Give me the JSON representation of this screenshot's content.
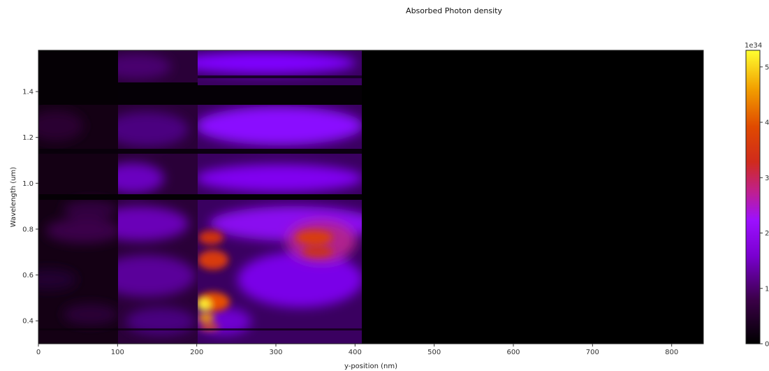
{
  "chart_data": {
    "type": "heatmap",
    "title": "Absorbed Photon density",
    "xlabel": "y-position (nm)",
    "ylabel": "Wavelength (um)",
    "xlim": [
      0,
      840
    ],
    "ylim": [
      0.3,
      1.58
    ],
    "x_ticks": [
      0,
      100,
      200,
      300,
      400,
      500,
      600,
      700,
      800
    ],
    "y_ticks": [
      0.4,
      0.6,
      0.8,
      1.0,
      1.2,
      1.4
    ],
    "x_tick_labels": [
      "0",
      "100",
      "200",
      "300",
      "400",
      "500",
      "600",
      "700",
      "800"
    ],
    "y_tick_labels": [
      "0.4",
      "0.6",
      "0.8",
      "1.0",
      "1.2",
      "1.4"
    ],
    "colormap": "gnuplot",
    "colorbar": {
      "range": [
        0,
        5.3
      ],
      "exponent_label": "1e34",
      "ticks": [
        0,
        1,
        2,
        3,
        4,
        5
      ],
      "tick_labels": [
        "0",
        "1",
        "2",
        "3",
        "4",
        "5"
      ]
    },
    "layers": [
      {
        "x_range": [
          0,
          100
        ],
        "level": "very low"
      },
      {
        "x_range": [
          100,
          200
        ],
        "level": "low"
      },
      {
        "x_range": [
          200,
          410
        ],
        "level": "moderate to high"
      },
      {
        "x_range": [
          410,
          840
        ],
        "level": "near zero"
      }
    ],
    "hotspots": [
      {
        "x": 210,
        "y": 0.47,
        "value": 5.1
      },
      {
        "x": 215,
        "y": 0.4,
        "value": 4.0
      },
      {
        "x": 220,
        "y": 0.68,
        "value": 3.0
      },
      {
        "x": 215,
        "y": 0.78,
        "value": 3.0
      },
      {
        "x": 345,
        "y": 0.76,
        "value": 2.8
      },
      {
        "x": 350,
        "y": 0.7,
        "value": 2.3
      }
    ],
    "dark_bands_y": [
      [
        0.935,
        0.955
      ],
      [
        1.13,
        1.15
      ],
      [
        1.36,
        1.45
      ],
      [
        1.47,
        1.48
      ],
      [
        1.56,
        1.58
      ]
    ]
  }
}
